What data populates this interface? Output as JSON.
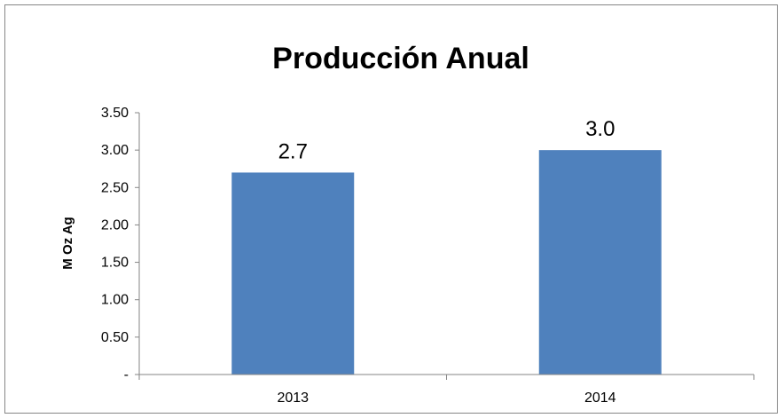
{
  "chart_data": {
    "type": "bar",
    "title": "Producción Anual",
    "xlabel": "",
    "ylabel": "M Oz Ag",
    "categories": [
      "2013",
      "2014"
    ],
    "values": [
      2.7,
      3.0
    ],
    "data_labels": [
      "2.7",
      "3.0"
    ],
    "ylim": [
      0,
      3.5
    ],
    "y_ticks": [
      {
        "value": 0,
        "label": "-"
      },
      {
        "value": 0.5,
        "label": "0.50"
      },
      {
        "value": 1.0,
        "label": "1.00"
      },
      {
        "value": 1.5,
        "label": "1.50"
      },
      {
        "value": 2.0,
        "label": "2.00"
      },
      {
        "value": 2.5,
        "label": "2.50"
      },
      {
        "value": 3.0,
        "label": "3.00"
      },
      {
        "value": 3.5,
        "label": "3.50"
      }
    ],
    "grid": false,
    "legend": "none",
    "bar_color": "#4F81BD"
  }
}
